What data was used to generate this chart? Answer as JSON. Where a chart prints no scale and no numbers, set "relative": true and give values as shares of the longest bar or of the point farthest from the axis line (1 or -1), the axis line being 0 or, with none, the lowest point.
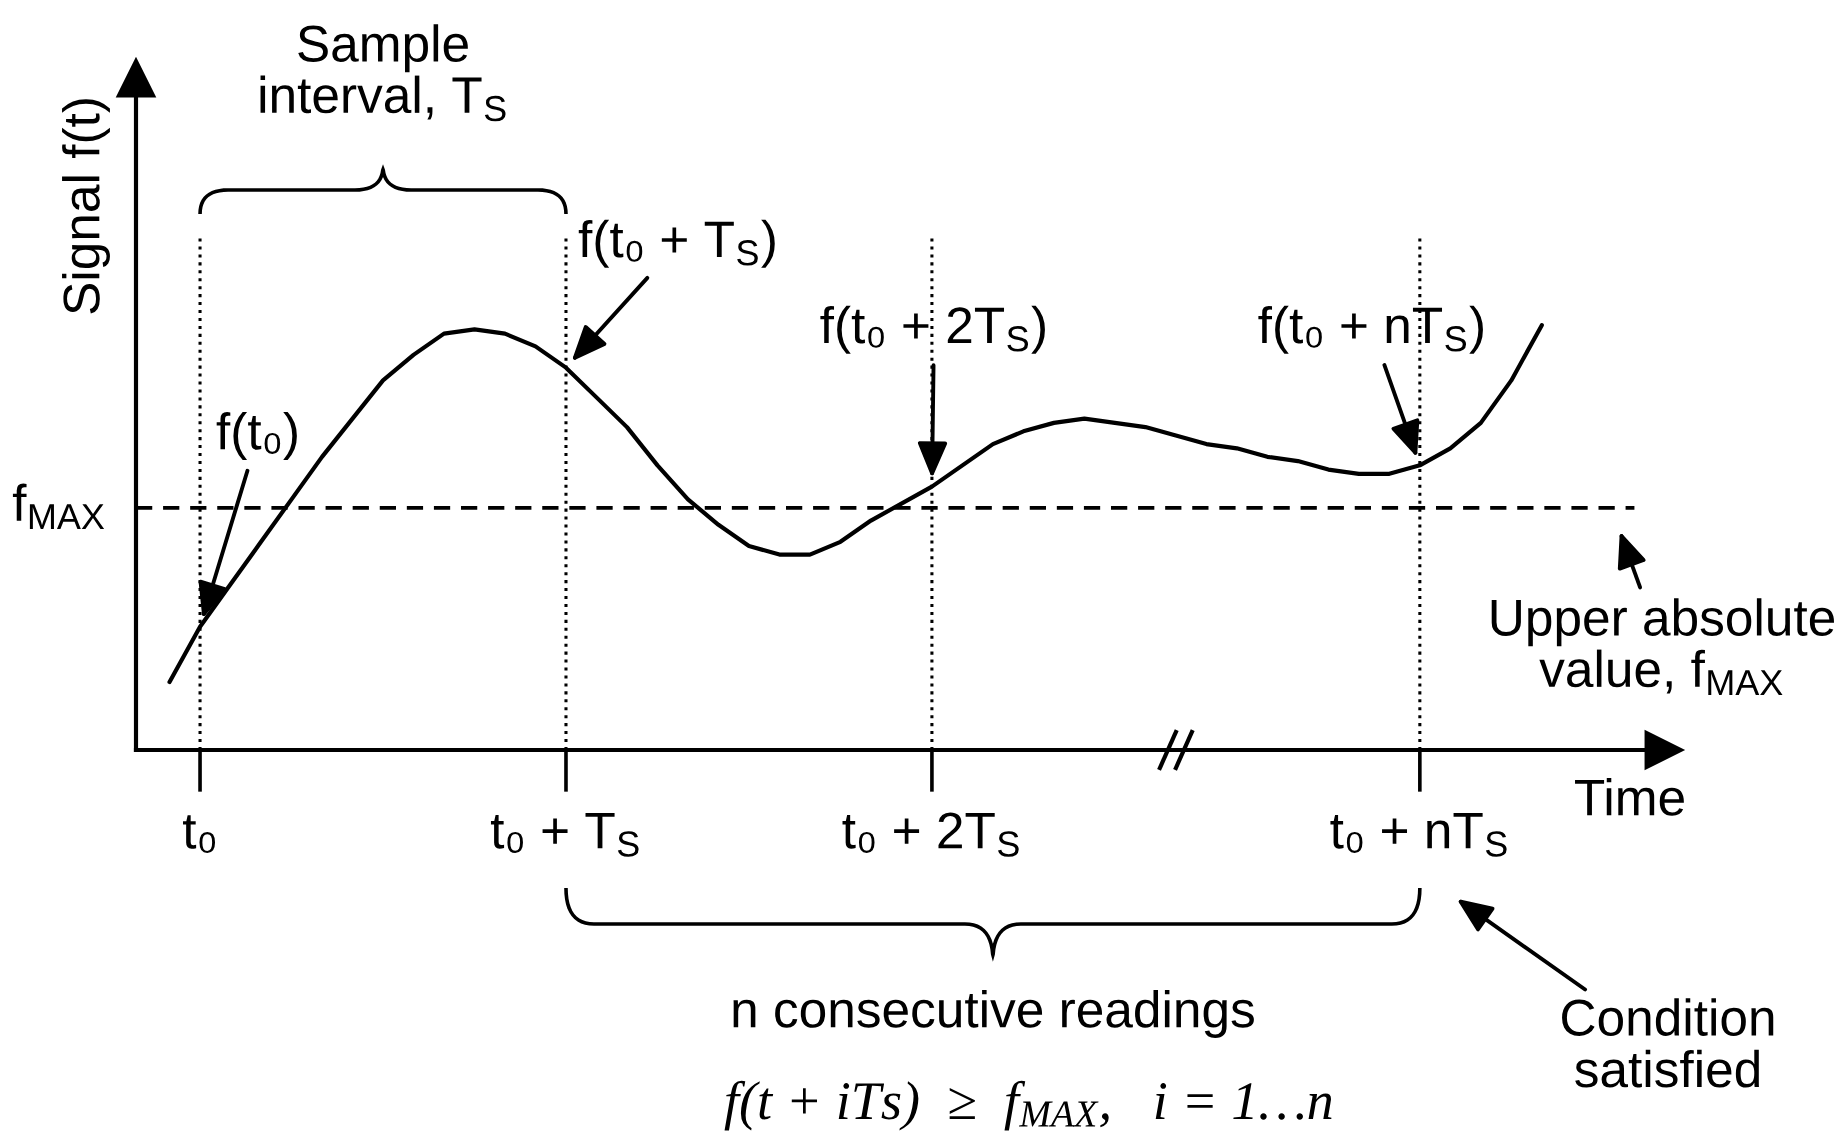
{
  "chart_data": {
    "type": "line",
    "relative": true,
    "xlabel": "Time",
    "ylabel": "Signal f(t)",
    "line_style": "solid",
    "grid": "x",
    "categories": [
      null,
      "t₀",
      null,
      null,
      null,
      null,
      null,
      null,
      null,
      null,
      null,
      null,
      null,
      "t₀ + T$_{S}$",
      null,
      null,
      null,
      null,
      null,
      null,
      null,
      null,
      null,
      null,
      null,
      "t₀ + 2T$_{S}$",
      null,
      null,
      null,
      null,
      null,
      null,
      null,
      null,
      null,
      null,
      null,
      null,
      null,
      null,
      null,
      "t₀ + nT$_{S}$",
      null,
      null,
      null,
      null
    ],
    "series": [
      {
        "color": "#000000",
        "values": [
          0.16,
          0.29,
          0.39,
          0.49,
          0.59,
          0.69,
          0.78,
          0.87,
          0.93,
          0.98,
          0.99,
          0.98,
          0.95,
          0.9,
          0.83,
          0.76,
          0.67,
          0.59,
          0.53,
          0.48,
          0.46,
          0.46,
          0.49,
          0.54,
          0.58,
          0.62,
          0.67,
          0.72,
          0.75,
          0.77,
          0.78,
          0.77,
          0.76,
          0.74,
          0.72,
          0.71,
          0.69,
          0.68,
          0.66,
          0.65,
          0.65,
          0.67,
          0.71,
          0.77,
          0.87,
          1.0
        ]
      }
    ],
    "ref_lines": [
      {
        "axis": "y",
        "value": 0.57,
        "label": "f$_{MAX}$",
        "line_style": "dashed",
        "color": "#000000"
      }
    ],
    "annotations": [
      {
        "text": "f(t₀)",
        "x": "t₀",
        "y": 0.29
      },
      {
        "text": "f(t₀ + T$_{S}$)",
        "x": "t₀ + T$_{S}$",
        "y": 0.9
      },
      {
        "text": "f(t₀ + 2T$_{S}$)",
        "x": "t₀ + 2T$_{S}$",
        "y": 0.62
      },
      {
        "text": "f(t₀ + nT$_{S}$)",
        "x": "t₀ + nT$_{S}$",
        "y": 0.67
      },
      "Sample\ninterval, T$_{S}$",
      "n consecutive readings",
      "f(t + iTs)  ≥  f$_{MAX}$,   i = 1…n",
      "Condition\nsatisfied",
      "Upper absolute\nvalue, f$_{MAX}$"
    ]
  }
}
